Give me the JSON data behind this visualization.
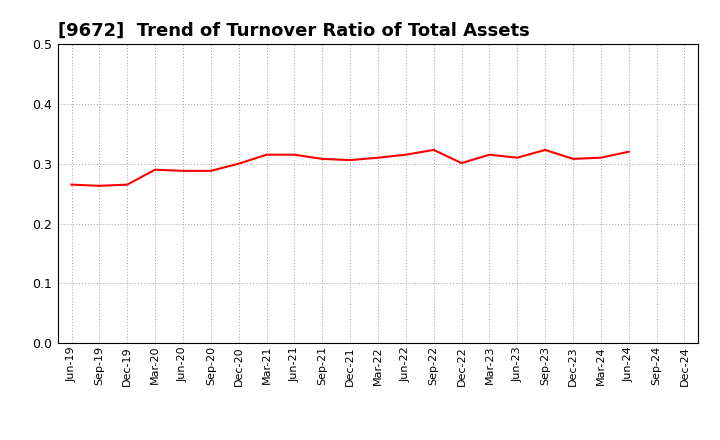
{
  "title": "[9672]  Trend of Turnover Ratio of Total Assets",
  "line_color": "#FF0000",
  "line_width": 1.5,
  "background_color": "#FFFFFF",
  "grid_color": "#B0B0B0",
  "grid_style": "dotted",
  "ylim": [
    0.0,
    0.5
  ],
  "yticks": [
    0.0,
    0.1,
    0.2,
    0.3,
    0.4,
    0.5
  ],
  "x_labels": [
    "Jun-19",
    "Sep-19",
    "Dec-19",
    "Mar-20",
    "Jun-20",
    "Sep-20",
    "Dec-20",
    "Mar-21",
    "Jun-21",
    "Sep-21",
    "Dec-21",
    "Mar-22",
    "Jun-22",
    "Sep-22",
    "Dec-22",
    "Mar-23",
    "Jun-23",
    "Sep-23",
    "Dec-23",
    "Mar-24",
    "Jun-24",
    "Sep-24",
    "Dec-24"
  ],
  "values": [
    0.265,
    0.263,
    0.265,
    0.29,
    0.288,
    0.288,
    0.3,
    0.315,
    0.315,
    0.308,
    0.306,
    0.31,
    0.315,
    0.323,
    0.301,
    0.315,
    0.31,
    0.323,
    0.308,
    0.31,
    0.32,
    null,
    null
  ],
  "title_fontsize": 13,
  "tick_fontsize": 8,
  "ytick_fontsize": 9
}
